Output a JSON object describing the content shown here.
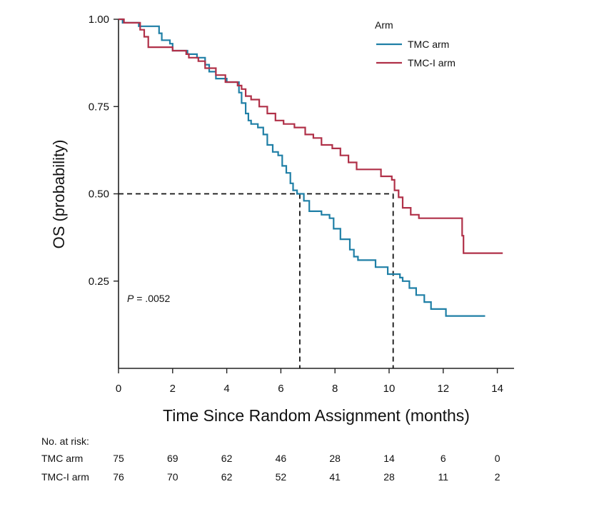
{
  "chart_data": {
    "type": "line",
    "title": "",
    "xlabel": "Time Since Random Assignment (months)",
    "ylabel": "OS (probability)",
    "xlim": [
      0,
      14.5
    ],
    "ylim": [
      0,
      1.0
    ],
    "x_ticks": [
      "0",
      "2",
      "4",
      "6",
      "8",
      "10",
      "12",
      "14"
    ],
    "y_ticks": [
      "0.25",
      "0.50",
      "0.75",
      "1.00"
    ],
    "legend_title": "Arm",
    "legend_position": "top-right",
    "annotation": {
      "p_prefix": "P",
      "p_value": " = .0052"
    },
    "median_lines": [
      {
        "series": "TMC arm",
        "x": 6.7,
        "y": 0.5
      },
      {
        "series": "TMC-I arm",
        "x": 10.15,
        "y": 0.5
      }
    ],
    "series": [
      {
        "name": "TMC arm",
        "color": "#1f7fa6",
        "points": [
          [
            0,
            1.0
          ],
          [
            0.15,
            0.99
          ],
          [
            0.3,
            0.99
          ],
          [
            0.7,
            0.99
          ],
          [
            0.75,
            0.98
          ],
          [
            1.4,
            0.98
          ],
          [
            1.5,
            0.96
          ],
          [
            1.6,
            0.94
          ],
          [
            1.9,
            0.93
          ],
          [
            2.0,
            0.91
          ],
          [
            2.5,
            0.91
          ],
          [
            2.55,
            0.9
          ],
          [
            2.9,
            0.89
          ],
          [
            3.2,
            0.87
          ],
          [
            3.35,
            0.85
          ],
          [
            3.6,
            0.83
          ],
          [
            4.0,
            0.82
          ],
          [
            4.4,
            0.82
          ],
          [
            4.45,
            0.79
          ],
          [
            4.55,
            0.76
          ],
          [
            4.7,
            0.73
          ],
          [
            4.8,
            0.71
          ],
          [
            4.9,
            0.7
          ],
          [
            5.15,
            0.69
          ],
          [
            5.35,
            0.67
          ],
          [
            5.5,
            0.64
          ],
          [
            5.7,
            0.62
          ],
          [
            5.9,
            0.61
          ],
          [
            6.05,
            0.58
          ],
          [
            6.2,
            0.56
          ],
          [
            6.35,
            0.53
          ],
          [
            6.45,
            0.51
          ],
          [
            6.6,
            0.5
          ],
          [
            6.85,
            0.48
          ],
          [
            7.05,
            0.45
          ],
          [
            7.5,
            0.44
          ],
          [
            7.8,
            0.43
          ],
          [
            7.95,
            0.4
          ],
          [
            8.2,
            0.37
          ],
          [
            8.55,
            0.34
          ],
          [
            8.7,
            0.32
          ],
          [
            8.85,
            0.31
          ],
          [
            9.3,
            0.31
          ],
          [
            9.5,
            0.29
          ],
          [
            9.9,
            0.29
          ],
          [
            9.95,
            0.27
          ],
          [
            10.4,
            0.26
          ],
          [
            10.5,
            0.25
          ],
          [
            10.75,
            0.23
          ],
          [
            11.0,
            0.21
          ],
          [
            11.3,
            0.19
          ],
          [
            11.55,
            0.17
          ],
          [
            12.1,
            0.15
          ],
          [
            13.55,
            0.15
          ]
        ]
      },
      {
        "name": "TMC-I arm",
        "color": "#b03048",
        "points": [
          [
            0,
            1.0
          ],
          [
            0.2,
            0.99
          ],
          [
            0.7,
            0.99
          ],
          [
            0.8,
            0.97
          ],
          [
            0.95,
            0.95
          ],
          [
            1.1,
            0.92
          ],
          [
            1.9,
            0.92
          ],
          [
            2.0,
            0.91
          ],
          [
            2.5,
            0.9
          ],
          [
            2.6,
            0.89
          ],
          [
            2.95,
            0.88
          ],
          [
            3.2,
            0.86
          ],
          [
            3.6,
            0.84
          ],
          [
            3.95,
            0.82
          ],
          [
            4.4,
            0.81
          ],
          [
            4.55,
            0.8
          ],
          [
            4.7,
            0.78
          ],
          [
            4.9,
            0.77
          ],
          [
            5.2,
            0.75
          ],
          [
            5.5,
            0.73
          ],
          [
            5.8,
            0.71
          ],
          [
            6.1,
            0.7
          ],
          [
            6.5,
            0.69
          ],
          [
            6.9,
            0.67
          ],
          [
            7.2,
            0.66
          ],
          [
            7.5,
            0.64
          ],
          [
            7.9,
            0.63
          ],
          [
            8.2,
            0.61
          ],
          [
            8.5,
            0.59
          ],
          [
            8.8,
            0.57
          ],
          [
            9.5,
            0.57
          ],
          [
            9.7,
            0.55
          ],
          [
            10.1,
            0.54
          ],
          [
            10.2,
            0.51
          ],
          [
            10.35,
            0.49
          ],
          [
            10.5,
            0.46
          ],
          [
            10.8,
            0.44
          ],
          [
            11.1,
            0.43
          ],
          [
            12.6,
            0.43
          ],
          [
            12.7,
            0.38
          ],
          [
            12.75,
            0.33
          ],
          [
            14.2,
            0.33
          ]
        ]
      }
    ]
  },
  "risk_table": {
    "title": "No. at risk:",
    "rows": [
      {
        "label": "TMC arm",
        "values": [
          "75",
          "69",
          "62",
          "46",
          "28",
          "14",
          "6",
          "0"
        ]
      },
      {
        "label": "TMC-I arm",
        "values": [
          "76",
          "70",
          "62",
          "52",
          "41",
          "28",
          "11",
          "2"
        ]
      }
    ]
  }
}
